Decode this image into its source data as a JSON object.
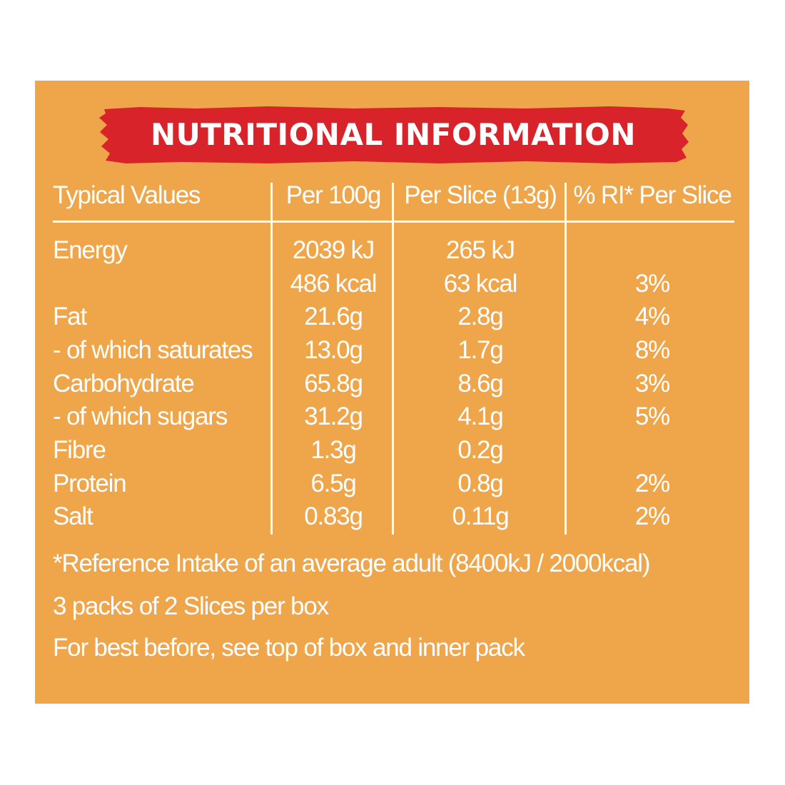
{
  "title": "NUTRITIONAL INFORMATION",
  "colors": {
    "panel": "#EFA64B",
    "banner": "#D8232A",
    "text": "#FFFFFF"
  },
  "columns": [
    "Typical Values",
    "Per 100g",
    "Per Slice (13g)",
    "% RI* Per Slice"
  ],
  "rows": [
    {
      "name": "Energy",
      "per100": "2039 kJ",
      "perSlice": "265 kJ",
      "ri": ""
    },
    {
      "name": "",
      "per100": "486 kcal",
      "perSlice": "63 kcal",
      "ri": "3%"
    },
    {
      "name": "Fat",
      "per100": "21.6g",
      "perSlice": "2.8g",
      "ri": "4%"
    },
    {
      "name": "- of which saturates",
      "per100": "13.0g",
      "perSlice": "1.7g",
      "ri": "8%"
    },
    {
      "name": "Carbohydrate",
      "per100": "65.8g",
      "perSlice": "8.6g",
      "ri": "3%"
    },
    {
      "name": "- of which sugars",
      "per100": "31.2g",
      "perSlice": "4.1g",
      "ri": "5%"
    },
    {
      "name": "Fibre",
      "per100": "1.3g",
      "perSlice": "0.2g",
      "ri": ""
    },
    {
      "name": "Protein",
      "per100": "6.5g",
      "perSlice": "0.8g",
      "ri": "2%"
    },
    {
      "name": "Salt",
      "per100": "0.83g",
      "perSlice": "0.11g",
      "ri": "2%"
    }
  ],
  "footnotes": [
    "*Reference Intake of an average adult (8400kJ / 2000kcal)",
    "3 packs of 2 Slices per box",
    "For best before, see top of box and inner pack"
  ]
}
